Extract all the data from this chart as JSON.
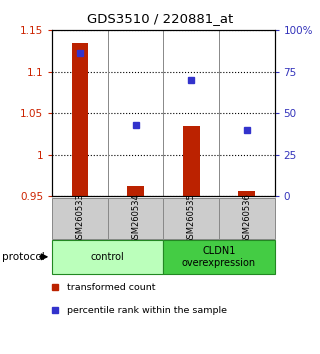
{
  "title": "GDS3510 / 220881_at",
  "samples": [
    "GSM260533",
    "GSM260534",
    "GSM260535",
    "GSM260536"
  ],
  "red_values": [
    1.135,
    0.963,
    1.035,
    0.957
  ],
  "blue_values": [
    86,
    43,
    70,
    40
  ],
  "red_baseline": 0.95,
  "ylim_left": [
    0.95,
    1.15
  ],
  "ylim_right": [
    0,
    100
  ],
  "yticks_left": [
    0.95,
    1.0,
    1.05,
    1.1,
    1.15
  ],
  "yticks_right": [
    0,
    25,
    50,
    75,
    100
  ],
  "ytick_labels_right": [
    "0",
    "25",
    "50",
    "75",
    "100%"
  ],
  "ytick_labels_left": [
    "0.95",
    "1",
    "1.05",
    "1.1",
    "1.15"
  ],
  "bar_color": "#bb2200",
  "square_color": "#3333cc",
  "groups": [
    {
      "label": "control",
      "samples": [
        0,
        1
      ],
      "color": "#bbffbb"
    },
    {
      "label": "CLDN1\noverexpression",
      "samples": [
        2,
        3
      ],
      "color": "#44cc44"
    }
  ],
  "legend_items": [
    {
      "color": "#bb2200",
      "label": "transformed count"
    },
    {
      "color": "#3333cc",
      "label": "percentile rank within the sample"
    }
  ],
  "protocol_label": "protocol",
  "bg_color": "#ffffff",
  "plot_bg": "#ffffff",
  "left_tick_color": "#cc2200",
  "right_tick_color": "#3333bb",
  "sample_box_color": "#cccccc",
  "sample_box_edge": "#888888",
  "bar_width": 0.3
}
